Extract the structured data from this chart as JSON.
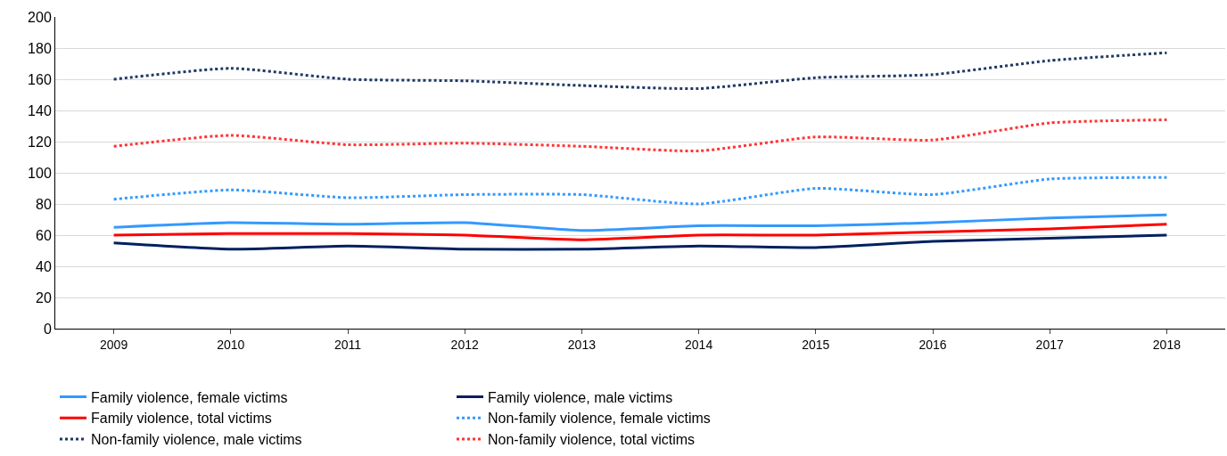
{
  "chart_data": {
    "type": "line",
    "categories": [
      "2009",
      "2010",
      "2011",
      "2012",
      "2013",
      "2014",
      "2015",
      "2016",
      "2017",
      "2018"
    ],
    "ylim": [
      0,
      200
    ],
    "yticks": [
      0,
      20,
      40,
      60,
      80,
      100,
      120,
      140,
      160,
      180,
      200
    ],
    "grid": "y",
    "legend": "bottom",
    "series": [
      {
        "name": "Family violence, female victims",
        "color": "#3399ff",
        "line_style": "solid",
        "values": [
          65,
          68,
          67,
          68,
          63,
          66,
          66,
          68,
          71,
          73
        ]
      },
      {
        "name": "Family violence, male victims",
        "color": "#002060",
        "line_style": "solid",
        "values": [
          55,
          51,
          53,
          51,
          51,
          53,
          52,
          56,
          58,
          60
        ]
      },
      {
        "name": "Family violence, total victims",
        "color": "#ff0000",
        "line_style": "solid",
        "values": [
          60,
          61,
          61,
          60,
          57,
          60,
          60,
          62,
          64,
          67
        ]
      },
      {
        "name": "Non-family violence, female victims",
        "color": "#3399ff",
        "line_style": "dotted",
        "values": [
          83,
          89,
          84,
          86,
          86,
          80,
          90,
          86,
          96,
          97
        ]
      },
      {
        "name": "Non-family violence, male victims",
        "color": "#1f3864",
        "line_style": "dotted",
        "values": [
          160,
          167,
          160,
          159,
          156,
          154,
          161,
          163,
          172,
          177
        ]
      },
      {
        "name": "Non-family violence, total victims",
        "color": "#ff3333",
        "line_style": "dotted",
        "values": [
          117,
          124,
          118,
          119,
          117,
          114,
          123,
          121,
          132,
          134
        ]
      }
    ]
  }
}
